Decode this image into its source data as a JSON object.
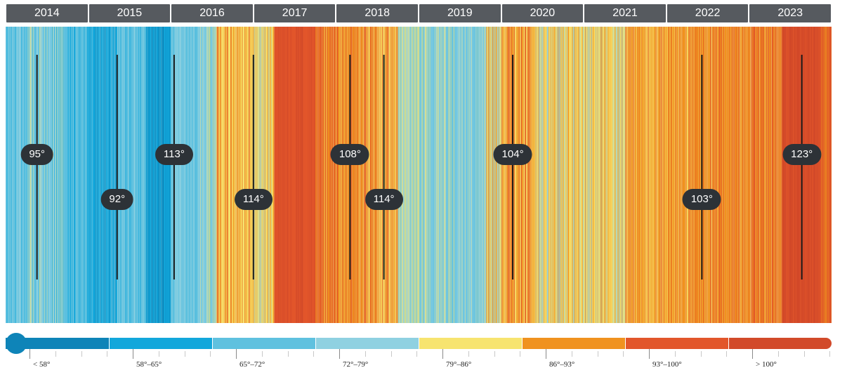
{
  "chart_data": {
    "type": "heatmap",
    "title": "",
    "x_axis": {
      "type": "time",
      "start": 2014,
      "end": 2024,
      "label": ""
    },
    "years": [
      "2014",
      "2015",
      "2016",
      "2017",
      "2018",
      "2019",
      "2020",
      "2021",
      "2022",
      "2023"
    ],
    "color_scale": [
      {
        "label": "< 58°",
        "min": null,
        "max": 58,
        "color": "#0e84b8"
      },
      {
        "label": "58°–65°",
        "min": 58,
        "max": 65,
        "color": "#12a7db"
      },
      {
        "label": "65°–72°",
        "min": 65,
        "max": 72,
        "color": "#5fc1df"
      },
      {
        "label": "72°–79°",
        "min": 72,
        "max": 79,
        "color": "#8fd1e1"
      },
      {
        "label": "79°–86°",
        "min": 79,
        "max": 86,
        "color": "#f7e46f"
      },
      {
        "label": "86°–93°",
        "min": 86,
        "max": 93,
        "color": "#f0921f"
      },
      {
        "label": "93°–100°",
        "min": 93,
        "max": 100,
        "color": "#e2562b"
      },
      {
        "label": "> 100°",
        "min": 100,
        "max": null,
        "color": "#d24a2a"
      }
    ],
    "stripe_bands": [
      {
        "start": 2014.0,
        "end": 2014.25,
        "mix": [
          [
            3,
            0.45
          ],
          [
            2,
            0.35
          ],
          [
            1,
            0.2
          ]
        ]
      },
      {
        "start": 2014.25,
        "end": 2014.7,
        "mix": [
          [
            3,
            0.5
          ],
          [
            2,
            0.3
          ],
          [
            4,
            0.1
          ],
          [
            1,
            0.1
          ]
        ]
      },
      {
        "start": 2014.7,
        "end": 2015.0,
        "mix": [
          [
            2,
            0.5
          ],
          [
            1,
            0.3
          ],
          [
            3,
            0.2
          ]
        ]
      },
      {
        "start": 2015.0,
        "end": 2015.35,
        "mix": [
          [
            1,
            0.5
          ],
          [
            2,
            0.35
          ],
          [
            0,
            0.15
          ]
        ]
      },
      {
        "start": 2015.35,
        "end": 2015.7,
        "mix": [
          [
            2,
            0.35
          ],
          [
            3,
            0.45
          ],
          [
            1,
            0.2
          ]
        ]
      },
      {
        "start": 2015.7,
        "end": 2016.0,
        "mix": [
          [
            1,
            0.55
          ],
          [
            0,
            0.35
          ],
          [
            2,
            0.1
          ]
        ]
      },
      {
        "start": 2016.0,
        "end": 2016.35,
        "mix": [
          [
            2,
            0.45
          ],
          [
            3,
            0.45
          ],
          [
            1,
            0.1
          ]
        ]
      },
      {
        "start": 2016.35,
        "end": 2016.55,
        "mix": [
          [
            3,
            0.5
          ],
          [
            2,
            0.3
          ],
          [
            4,
            0.2
          ]
        ]
      },
      {
        "start": 2016.55,
        "end": 2016.75,
        "mix": [
          [
            5,
            0.4
          ],
          [
            4,
            0.4
          ],
          [
            6,
            0.2
          ]
        ]
      },
      {
        "start": 2016.75,
        "end": 2017.0,
        "mix": [
          [
            4,
            0.55
          ],
          [
            5,
            0.35
          ],
          [
            6,
            0.1
          ]
        ]
      },
      {
        "start": 2017.0,
        "end": 2017.25,
        "mix": [
          [
            4,
            0.5
          ],
          [
            5,
            0.3
          ],
          [
            3,
            0.2
          ]
        ]
      },
      {
        "start": 2017.25,
        "end": 2017.75,
        "mix": [
          [
            6,
            0.7
          ],
          [
            7,
            0.3
          ]
        ]
      },
      {
        "start": 2017.75,
        "end": 2018.0,
        "mix": [
          [
            5,
            0.45
          ],
          [
            6,
            0.4
          ],
          [
            4,
            0.15
          ]
        ]
      },
      {
        "start": 2018.0,
        "end": 2018.5,
        "mix": [
          [
            5,
            0.4
          ],
          [
            4,
            0.3
          ],
          [
            6,
            0.3
          ]
        ]
      },
      {
        "start": 2018.5,
        "end": 2018.75,
        "mix": [
          [
            4,
            0.5
          ],
          [
            5,
            0.3
          ],
          [
            6,
            0.2
          ]
        ]
      },
      {
        "start": 2018.75,
        "end": 2019.0,
        "mix": [
          [
            3,
            0.45
          ],
          [
            4,
            0.35
          ],
          [
            2,
            0.2
          ]
        ]
      },
      {
        "start": 2019.0,
        "end": 2019.55,
        "mix": [
          [
            3,
            0.45
          ],
          [
            2,
            0.35
          ],
          [
            4,
            0.2
          ]
        ]
      },
      {
        "start": 2019.55,
        "end": 2019.8,
        "mix": [
          [
            2,
            0.45
          ],
          [
            3,
            0.45
          ],
          [
            4,
            0.1
          ]
        ]
      },
      {
        "start": 2019.8,
        "end": 2020.0,
        "mix": [
          [
            5,
            0.3
          ],
          [
            4,
            0.35
          ],
          [
            3,
            0.35
          ]
        ]
      },
      {
        "start": 2020.0,
        "end": 2020.4,
        "mix": [
          [
            5,
            0.4
          ],
          [
            6,
            0.3
          ],
          [
            4,
            0.3
          ]
        ]
      },
      {
        "start": 2020.4,
        "end": 2020.8,
        "mix": [
          [
            4,
            0.5
          ],
          [
            3,
            0.3
          ],
          [
            5,
            0.2
          ]
        ]
      },
      {
        "start": 2020.8,
        "end": 2021.5,
        "mix": [
          [
            4,
            0.55
          ],
          [
            5,
            0.3
          ],
          [
            3,
            0.15
          ]
        ]
      },
      {
        "start": 2021.5,
        "end": 2022.0,
        "mix": [
          [
            4,
            0.4
          ],
          [
            5,
            0.45
          ],
          [
            6,
            0.15
          ]
        ]
      },
      {
        "start": 2022.0,
        "end": 2022.6,
        "mix": [
          [
            5,
            0.55
          ],
          [
            4,
            0.25
          ],
          [
            6,
            0.2
          ]
        ]
      },
      {
        "start": 2022.6,
        "end": 2023.0,
        "mix": [
          [
            5,
            0.5
          ],
          [
            6,
            0.35
          ],
          [
            4,
            0.15
          ]
        ]
      },
      {
        "start": 2023.0,
        "end": 2023.4,
        "mix": [
          [
            5,
            0.45
          ],
          [
            6,
            0.45
          ],
          [
            4,
            0.1
          ]
        ]
      },
      {
        "start": 2023.4,
        "end": 2023.85,
        "mix": [
          [
            7,
            0.75
          ],
          [
            6,
            0.25
          ]
        ]
      },
      {
        "start": 2023.85,
        "end": 2024.0,
        "mix": [
          [
            6,
            0.55
          ],
          [
            5,
            0.3
          ],
          [
            7,
            0.15
          ]
        ]
      }
    ],
    "annotations": [
      {
        "label": "95°",
        "x": 2014.38,
        "row": "upper"
      },
      {
        "label": "92°",
        "x": 2015.35,
        "row": "lower"
      },
      {
        "label": "113°",
        "x": 2016.04,
        "row": "upper"
      },
      {
        "label": "114°",
        "x": 2017.0,
        "row": "lower"
      },
      {
        "label": "108°",
        "x": 2018.17,
        "row": "upper"
      },
      {
        "label": "114°",
        "x": 2018.58,
        "row": "lower"
      },
      {
        "label": "104°",
        "x": 2020.14,
        "row": "upper"
      },
      {
        "label": "103°",
        "x": 2022.43,
        "row": "lower"
      },
      {
        "label": "123°",
        "x": 2023.64,
        "row": "upper"
      }
    ]
  },
  "legend": {
    "ranges": [
      "< 58°",
      "58°–65°",
      "65°–72°",
      "72°–79°",
      "79°–86°",
      "86°–93°",
      "93°–100°",
      "> 100°"
    ]
  }
}
